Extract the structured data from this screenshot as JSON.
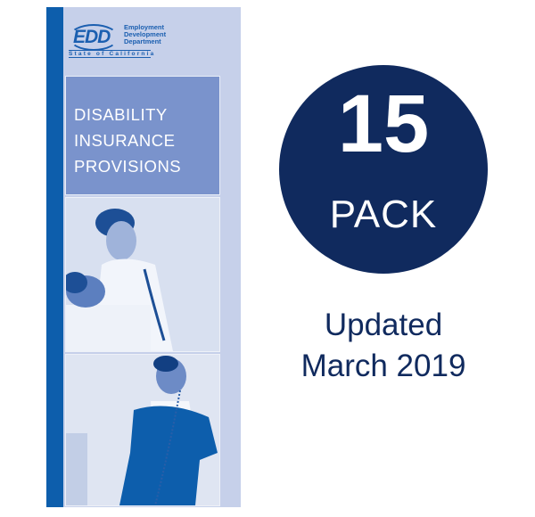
{
  "brochure": {
    "logo": {
      "abbr": "EDD",
      "department": [
        "Employment",
        "Development",
        "Department"
      ],
      "state": "State of California"
    },
    "title_lines": [
      "DISABILITY",
      "INSURANCE",
      "PROVISIONS"
    ]
  },
  "badge": {
    "number": "15",
    "unit": "PACK"
  },
  "updated": {
    "line1": "Updated",
    "line2": "March 2019"
  },
  "colors": {
    "navy": "#102a5e",
    "edd_blue": "#0d5eac",
    "title_box": "#7a93cc",
    "brochure_bg": "#c6d0ea"
  }
}
